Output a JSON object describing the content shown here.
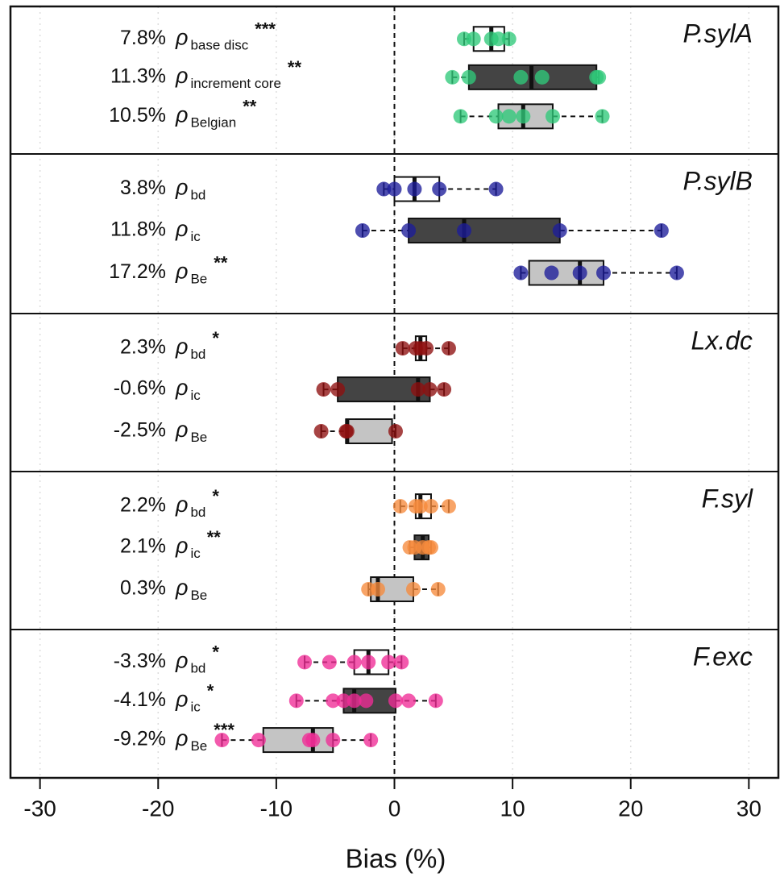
{
  "chart_data": {
    "type": "boxplot",
    "xlabel": "Bias (%)",
    "xlim": [
      -32.5,
      32.5
    ],
    "xticks": [
      -30,
      -20,
      -10,
      0,
      10,
      20,
      30
    ],
    "grid": true,
    "box_colors": [
      "#ffffff",
      "#444444",
      "#c4c4c4"
    ],
    "groups": [
      {
        "name": "P.sylA",
        "color": "#2fc97a",
        "rows": [
          {
            "percent": "7.8%",
            "symbol": "ρ",
            "subscript": "base disc",
            "stars": "***",
            "min": 5.9,
            "q1": 6.7,
            "median": 8.2,
            "q3": 9.3,
            "max": 9.7,
            "points": [
              5.9,
              6.7,
              8.2,
              8.8,
              9.7
            ]
          },
          {
            "percent": "11.3%",
            "symbol": "ρ",
            "subscript": "increment core",
            "stars": "**",
            "min": 4.9,
            "q1": 6.3,
            "median": 11.6,
            "q3": 17.1,
            "max": 17.3,
            "points": [
              4.9,
              6.3,
              10.7,
              12.5,
              17.1,
              17.3
            ]
          },
          {
            "percent": "10.5%",
            "symbol": "ρ",
            "subscript": "Belgian",
            "stars": "**",
            "min": 5.6,
            "q1": 8.8,
            "median": 10.9,
            "q3": 13.4,
            "max": 17.6,
            "points": [
              5.6,
              8.6,
              9.7,
              10.9,
              13.4,
              17.6
            ]
          }
        ]
      },
      {
        "name": "P.sylB",
        "color": "#1c1c9a",
        "rows": [
          {
            "percent": "3.8%",
            "symbol": "ρ",
            "subscript": "bd",
            "min": -0.9,
            "q1": 0,
            "median": 1.7,
            "q3": 3.8,
            "max": 8.6,
            "points": [
              -0.9,
              0,
              1.7,
              3.8,
              8.6
            ]
          },
          {
            "percent": "11.8%",
            "symbol": "ρ",
            "subscript": "ic",
            "min": -2.7,
            "q1": 1.2,
            "median": 5.9,
            "q3": 14.0,
            "max": 22.6,
            "points": [
              -2.7,
              1.2,
              5.9,
              14.0,
              22.6
            ]
          },
          {
            "percent": "17.2%",
            "symbol": "ρ",
            "subscript": "Be",
            "stars": "**",
            "min": 10.7,
            "q1": 11.4,
            "median": 15.7,
            "q3": 17.7,
            "max": 23.9,
            "points": [
              10.7,
              13.3,
              15.7,
              17.7,
              23.9
            ]
          }
        ]
      },
      {
        "name": "Lx.dc",
        "color": "#8e1010",
        "rows": [
          {
            "percent": "2.3%",
            "symbol": "ρ",
            "subscript": "bd",
            "stars": "*",
            "min": 0.7,
            "q1": 1.8,
            "median": 2.2,
            "q3": 2.7,
            "max": 4.6,
            "points": [
              0.7,
              1.8,
              2.2,
              2.7,
              4.6
            ]
          },
          {
            "percent": "-0.6%",
            "symbol": "ρ",
            "subscript": "ic",
            "min": -6.0,
            "q1": -4.8,
            "median": 2.0,
            "q3": 3.0,
            "max": 4.2,
            "points": [
              -6.0,
              -4.8,
              2.0,
              3.0,
              4.2
            ]
          },
          {
            "percent": "-2.5%",
            "symbol": "ρ",
            "subscript": "Be",
            "min": -6.2,
            "q1": -4.1,
            "median": -4.0,
            "q3": -0.2,
            "max": 0.1,
            "points": [
              -6.2,
              -4.1,
              -4.0,
              0.1
            ]
          }
        ]
      },
      {
        "name": "F.syl",
        "color": "#f68a3c",
        "rows": [
          {
            "percent": "2.2%",
            "symbol": "ρ",
            "subscript": "bd",
            "stars": "*",
            "min": 0.5,
            "q1": 1.8,
            "median": 2.2,
            "q3": 3.1,
            "max": 4.6,
            "points": [
              0.5,
              1.8,
              2.2,
              3.1,
              4.6
            ]
          },
          {
            "percent": "2.1%",
            "symbol": "ρ",
            "subscript": "ic",
            "stars": "**",
            "min": 1.3,
            "q1": 1.7,
            "median": 2.4,
            "q3": 2.9,
            "max": 3.1,
            "points": [
              1.3,
              1.7,
              2.4,
              2.9,
              3.1
            ]
          },
          {
            "percent": "0.3%",
            "symbol": "ρ",
            "subscript": "Be",
            "min": -2.2,
            "q1": -2.0,
            "median": -1.4,
            "q3": 1.6,
            "max": 3.7,
            "points": [
              -2.2,
              -1.4,
              1.6,
              3.7
            ]
          }
        ]
      },
      {
        "name": "F.exc",
        "color": "#ef2b96",
        "rows": [
          {
            "percent": "-3.3%",
            "symbol": "ρ",
            "subscript": "bd",
            "stars": "*",
            "min": -7.6,
            "q1": -3.4,
            "median": -2.2,
            "q3": -0.5,
            "max": 0.6,
            "points": [
              -7.6,
              -5.5,
              -3.4,
              -2.2,
              -0.5,
              0.6
            ]
          },
          {
            "percent": "-4.1%",
            "symbol": "ρ",
            "subscript": "ic",
            "stars": "*",
            "min": -8.3,
            "q1": -4.3,
            "median": -3.4,
            "q3": 0.1,
            "max": 3.5,
            "points": [
              -8.3,
              -5.2,
              -4.3,
              -3.4,
              -2.4,
              0.1,
              1.2,
              3.5
            ]
          },
          {
            "percent": "-9.2%",
            "symbol": "ρ",
            "subscript": "Be",
            "stars": "***",
            "min": -14.6,
            "q1": -11.1,
            "median": -6.9,
            "q3": -5.2,
            "max": -2.0,
            "points": [
              -14.6,
              -11.5,
              -7.2,
              -6.9,
              -5.2,
              -2.0
            ]
          }
        ]
      }
    ]
  }
}
